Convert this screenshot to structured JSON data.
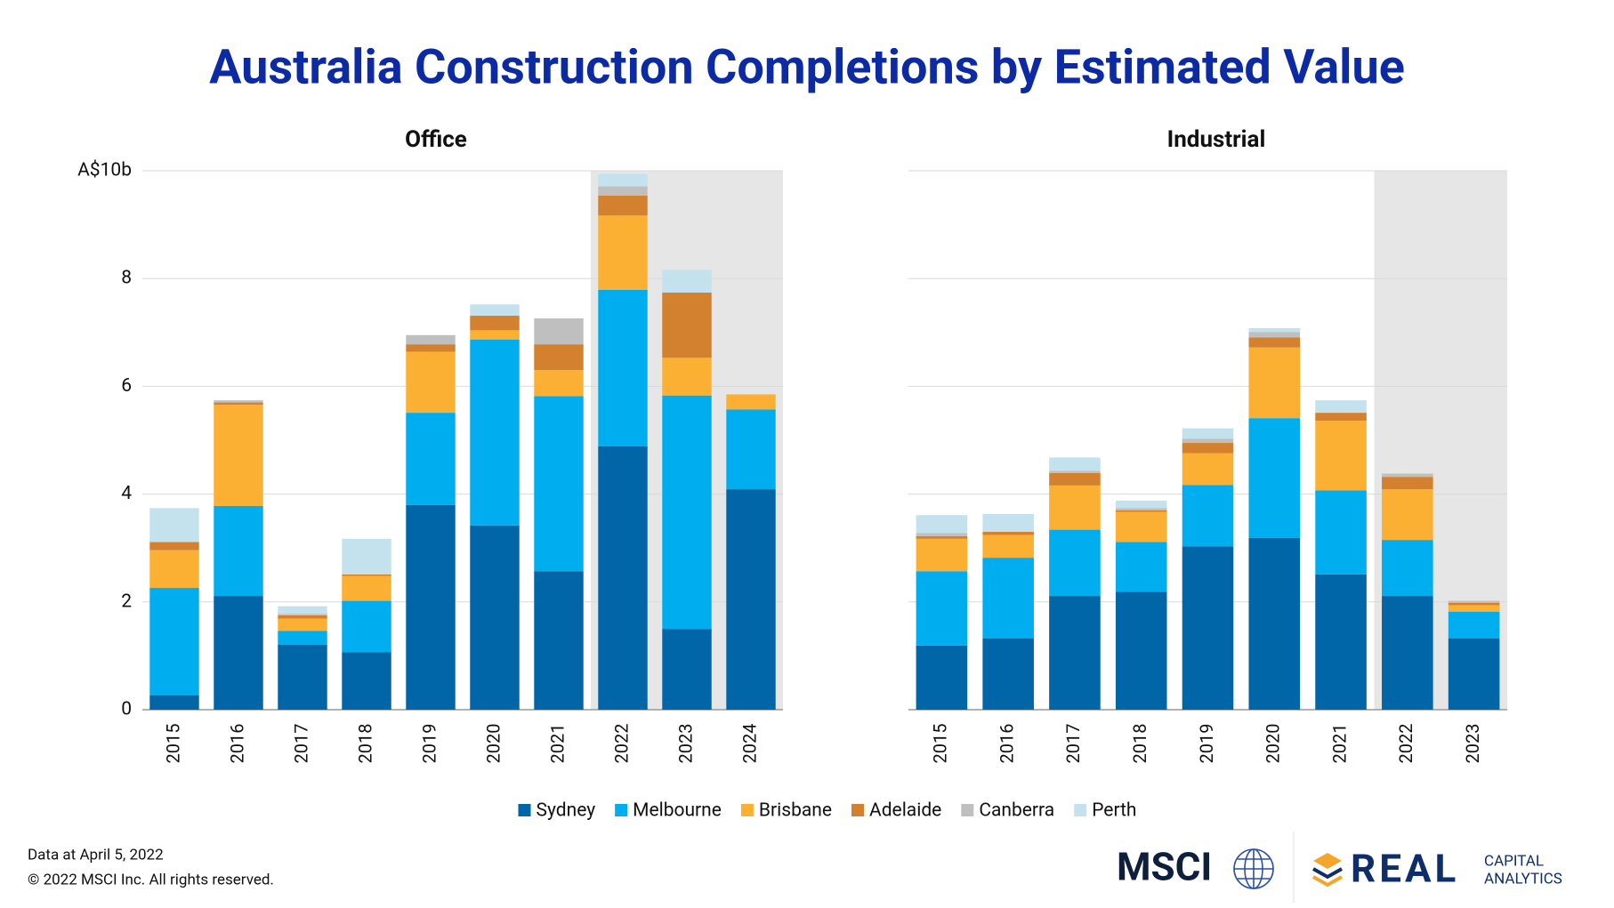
{
  "title": "Australia Construction Completions by Estimated Value",
  "footer": {
    "note": "Data at April 5, 2022",
    "copyright": "© 2022 MSCI Inc. All rights reserved."
  },
  "logos": {
    "msci": "MSCI",
    "rca_main": "REAL",
    "rca_sub1": "CAPITAL",
    "rca_sub2": "ANALYTICS"
  },
  "chart_data": [
    {
      "type": "stacked_bar",
      "title": "Office",
      "categories": [
        "2015",
        "2016",
        "2017",
        "2018",
        "2019",
        "2020",
        "2021",
        "2022",
        "2023",
        "2024"
      ],
      "series": [
        {
          "name": "Sydney",
          "color": "#0066a8",
          "values": [
            0.27,
            2.11,
            1.21,
            1.07,
            3.8,
            3.42,
            2.57,
            4.89,
            1.5,
            4.09
          ]
        },
        {
          "name": "Melbourne",
          "color": "#00aeef",
          "values": [
            1.99,
            1.67,
            0.25,
            0.95,
            1.71,
            3.45,
            3.25,
            2.9,
            4.33,
            1.48
          ]
        },
        {
          "name": "Brisbane",
          "color": "#fbb034",
          "values": [
            0.7,
            1.88,
            0.23,
            0.46,
            1.13,
            0.17,
            0.48,
            1.38,
            0.7,
            0.28
          ]
        },
        {
          "name": "Adelaide",
          "color": "#d4812f",
          "values": [
            0.15,
            0.04,
            0.06,
            0.03,
            0.14,
            0.27,
            0.48,
            0.37,
            1.21,
            0
          ]
        },
        {
          "name": "Canberra",
          "color": "#bfbfbf",
          "values": [
            0,
            0.04,
            0.03,
            0,
            0.17,
            0,
            0.48,
            0.17,
            0,
            0
          ]
        },
        {
          "name": "Perth",
          "color": "#c3e2ee",
          "values": [
            0.63,
            0,
            0.14,
            0.66,
            0,
            0.21,
            0,
            0.23,
            0.42,
            0
          ]
        }
      ],
      "ylim": [
        0,
        10
      ],
      "yticks": [
        0,
        2,
        4,
        6,
        8,
        {
          "value": 10,
          "label": "A$10b"
        }
      ],
      "show_ytick_labels": true,
      "grid": true,
      "shade_from_index": 7,
      "legend": "bottom"
    },
    {
      "type": "stacked_bar",
      "title": "Industrial",
      "categories": [
        "2015",
        "2016",
        "2017",
        "2018",
        "2019",
        "2020",
        "2021",
        "2022",
        "2023"
      ],
      "series": [
        {
          "name": "Sydney",
          "color": "#0066a8",
          "values": [
            1.19,
            1.32,
            2.11,
            2.19,
            3.03,
            3.19,
            2.51,
            2.11,
            1.32
          ]
        },
        {
          "name": "Melbourne",
          "color": "#00aeef",
          "values": [
            1.38,
            1.5,
            1.23,
            0.92,
            1.14,
            2.22,
            1.56,
            1.04,
            0.5
          ]
        },
        {
          "name": "Brisbane",
          "color": "#fbb034",
          "values": [
            0.6,
            0.42,
            0.82,
            0.56,
            0.59,
            1.31,
            1.29,
            0.94,
            0.12
          ]
        },
        {
          "name": "Adelaide",
          "color": "#d4812f",
          "values": [
            0.05,
            0.06,
            0.23,
            0.03,
            0.19,
            0.19,
            0.15,
            0.23,
            0.04
          ]
        },
        {
          "name": "Canberra",
          "color": "#bfbfbf",
          "values": [
            0.06,
            0,
            0.04,
            0.04,
            0.08,
            0.1,
            0,
            0.06,
            0.04
          ]
        },
        {
          "name": "Perth",
          "color": "#c3e2ee",
          "values": [
            0.33,
            0.33,
            0.25,
            0.14,
            0.19,
            0.07,
            0.23,
            0,
            0
          ]
        }
      ],
      "ylim": [
        0,
        10
      ],
      "yticks": [
        0,
        2,
        4,
        6,
        8,
        10
      ],
      "show_ytick_labels": false,
      "grid": true,
      "shade_from_index": 7
    }
  ]
}
